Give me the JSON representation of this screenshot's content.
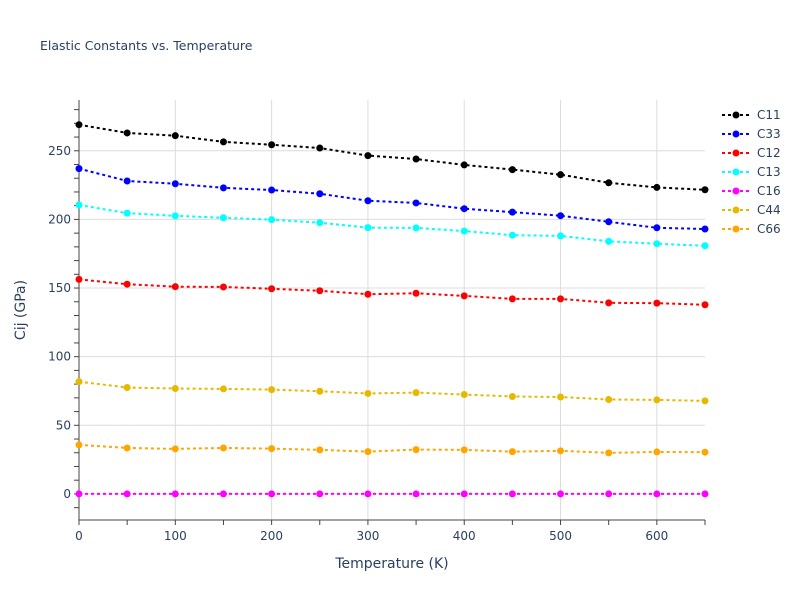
{
  "chart_data": {
    "type": "line",
    "title": "Elastic Constants vs. Temperature",
    "xlabel": "Temperature (K)",
    "ylabel": "Cij (GPa)",
    "xlim": [
      0,
      650
    ],
    "ylim": [
      -19,
      287
    ],
    "xticks": [
      0,
      100,
      200,
      300,
      400,
      500,
      600
    ],
    "yticks": [
      0,
      50,
      100,
      150,
      200,
      250
    ],
    "grid": true,
    "legend_position": "right",
    "x": [
      0,
      50,
      100,
      150,
      200,
      250,
      300,
      350,
      400,
      450,
      500,
      550,
      600,
      650
    ],
    "series": [
      {
        "name": "C11",
        "color": "#000000",
        "values": [
          269,
          263,
          261,
          256.5,
          254.4,
          252,
          246.5,
          244,
          239.7,
          236.3,
          232.6,
          226.7,
          223.3,
          221.6
        ]
      },
      {
        "name": "C33",
        "color": "#0000ff",
        "values": [
          237,
          228,
          226,
          223,
          221.4,
          218.7,
          213.6,
          212,
          207.8,
          205.3,
          202.7,
          198.3,
          193.9,
          193
        ]
      },
      {
        "name": "C12",
        "color": "#ff0000",
        "values": [
          156.3,
          152.8,
          151,
          150.8,
          149.5,
          148,
          145.5,
          146.2,
          144.3,
          142.1,
          142.1,
          139.2,
          139,
          137.8
        ]
      },
      {
        "name": "C13",
        "color": "#00ffff",
        "values": [
          210.5,
          204.6,
          202.6,
          201.2,
          199.8,
          197.6,
          194,
          193.8,
          191.5,
          188.5,
          188,
          184,
          182.3,
          180.8
        ]
      },
      {
        "name": "C16",
        "color": "#ff00ff",
        "values": [
          0,
          0,
          0,
          0,
          0,
          0,
          0,
          0,
          0,
          0,
          0,
          0,
          0,
          0
        ]
      },
      {
        "name": "C44",
        "color": "#e6b800",
        "values": [
          81.8,
          77.5,
          76.8,
          76.5,
          76,
          74.8,
          73.2,
          73.8,
          72.4,
          71,
          70.6,
          68.8,
          68.5,
          67.8
        ]
      },
      {
        "name": "C66",
        "color": "#ffa500",
        "values": [
          35.7,
          33.5,
          32.8,
          33.5,
          33,
          32.1,
          30.8,
          32.3,
          32.1,
          30.8,
          31.4,
          29.9,
          30.6,
          30.4
        ]
      }
    ]
  }
}
